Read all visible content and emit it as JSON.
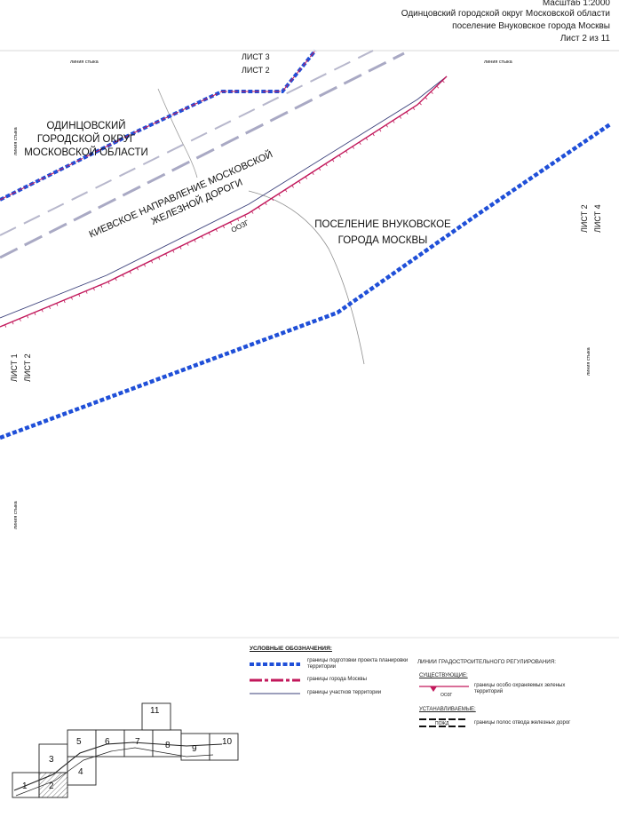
{
  "header": {
    "scale": "Масштаб 1:2000",
    "region": "Одинцовский городской округ Московской области",
    "settlement": "поселение Внуковское города Москвы",
    "sheet": "Лист 2 из 11"
  },
  "map": {
    "area_label_odintsovo": [
      "ОДИНЦОВСКИЙ",
      "ГОРОДСКОЙ ОКРУГ",
      "МОСКОВСКОЙ ОБЛАСТИ"
    ],
    "area_label_railway": [
      "КИЕВСКОЕ НАПРАВЛЕНИЕ МОСКОВСКОЙ",
      "ЖЕЛЕЗНОЙ ДОРОГИ"
    ],
    "area_label_vnukovo": [
      "ПОСЕЛЕНИЕ ВНУКОВСКОЕ",
      "ГОРОДА МОСКВЫ"
    ],
    "zone_code": "ОО3Г",
    "match_line_label": "линия стыка",
    "sheet_refs": {
      "top_a": "ЛИСТ 3",
      "top_b": "ЛИСТ 2",
      "right_a": "ЛИСТ 2",
      "right_b": "ЛИСТ 4",
      "left_a": "ЛИСТ 1",
      "left_b": "ЛИСТ 2"
    },
    "colors": {
      "project_boundary": "#1f4fd8",
      "moscow_boundary": "#c2185b",
      "land_plot": "#3a3f7a",
      "railway": "#a7a7c0"
    }
  },
  "legend": {
    "title": "УСЛОВНЫЕ ОБОЗНАЧЕНИЯ:",
    "items": [
      "границы подготовки проекта планировки территории",
      "границы города Москвы",
      "границы участков территории"
    ],
    "regulation_title": "ЛИНИИ ГРАДОСТРОИТЕЛЬНОГО РЕГУЛИРОВАНИЯ:",
    "existing_label": "СУЩЕСТВУЮЩИЕ:",
    "existing_code": "ОО3Г",
    "existing_item": "границы особо охраняемых зеленых территорий",
    "planned_label": "УСТАНАВЛИВАЕМЫЕ:",
    "planned_code": "ПОЖД",
    "planned_item": "границы полос отвода железных дорог"
  },
  "key_map": {
    "sheets": [
      "1",
      "2",
      "3",
      "4",
      "5",
      "6",
      "7",
      "8",
      "9",
      "10",
      "11"
    ],
    "current_sheet": "2"
  }
}
